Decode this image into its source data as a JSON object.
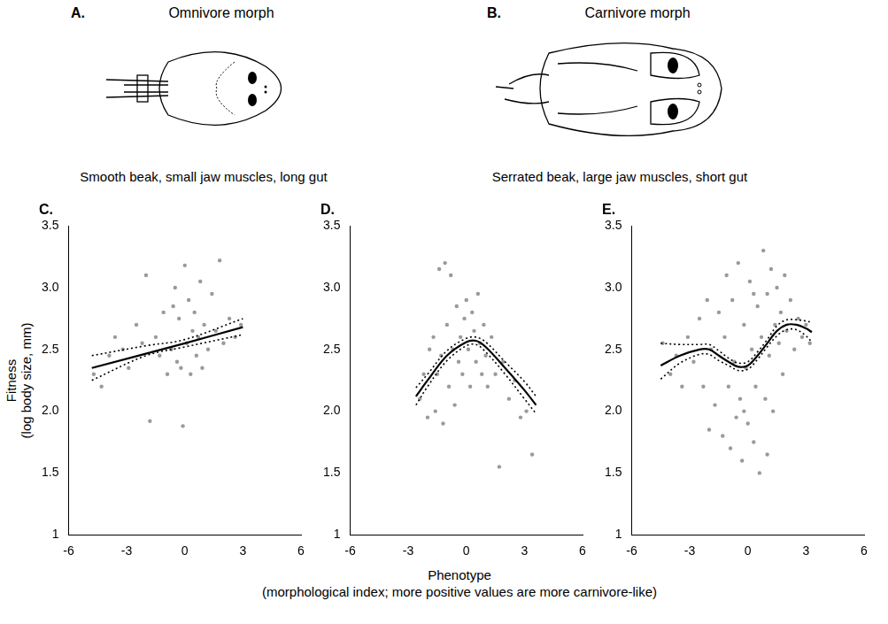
{
  "drawings": [
    {
      "letter": "A.",
      "title": "Omnivore morph",
      "caption": "Smooth beak, small jaw muscles, long gut"
    },
    {
      "letter": "B.",
      "title": "Carnivore morph",
      "caption": "Serrated beak, large jaw muscles, short gut"
    }
  ],
  "y_label": [
    "Fitness",
    "(log body size, mm)"
  ],
  "x_label": [
    "Phenotype",
    "(morphological index; more positive values are more carnivore-like)"
  ],
  "chart_data": [
    {
      "type": "scatter",
      "title": "C.",
      "grid": false,
      "xlim": [
        -6,
        6
      ],
      "xticks": [
        -6,
        -3,
        0,
        3,
        6
      ],
      "ylim": [
        1,
        3.5
      ],
      "yticks": [
        1,
        1.5,
        {
          "value": 2,
          "label": "2.0"
        },
        2.5,
        {
          "value": 3,
          "label": "3.0"
        },
        3.5
      ],
      "series": [
        {
          "type": "scatter",
          "marker": "circle",
          "color": "#9a9a9a",
          "x": [
            -4.7,
            -4.3,
            -3.9,
            -3.6,
            -3.2,
            -2.9,
            -2.5,
            -2.2,
            -2.0,
            -1.8,
            -1.5,
            -1.3,
            -1.1,
            -0.9,
            -0.7,
            -0.6,
            -0.5,
            -0.4,
            -0.3,
            -0.2,
            -0.1,
            0,
            0.1,
            0.2,
            0.3,
            0.4,
            0.5,
            0.6,
            0.7,
            0.8,
            0.9,
            1.0,
            1.2,
            1.4,
            1.6,
            1.8,
            2.0,
            2.3,
            2.6,
            2.9
          ],
          "values": [
            2.3,
            2.2,
            2.45,
            2.6,
            2.5,
            2.35,
            2.7,
            2.55,
            3.1,
            1.92,
            2.6,
            2.45,
            2.8,
            2.3,
            2.5,
            2.85,
            3.0,
            2.4,
            2.75,
            2.35,
            1.88,
            3.18,
            2.55,
            2.9,
            2.3,
            2.65,
            2.8,
            2.45,
            2.6,
            3.05,
            2.35,
            2.7,
            2.5,
            2.95,
            2.65,
            3.22,
            2.55,
            2.75,
            2.6,
            2.7
          ]
        },
        {
          "type": "line",
          "line_style": "solid",
          "color": "#000000",
          "x": [
            -4.8,
            0,
            3
          ],
          "values": [
            2.35,
            2.55,
            2.68
          ]
        },
        {
          "type": "line",
          "line_style": "dotted",
          "color": "#000000",
          "x": [
            -4.8,
            -2,
            0,
            3
          ],
          "values": [
            2.25,
            2.45,
            2.52,
            2.62
          ]
        },
        {
          "type": "line",
          "line_style": "dotted",
          "color": "#000000",
          "x": [
            -4.8,
            -2,
            0,
            3
          ],
          "values": [
            2.45,
            2.53,
            2.58,
            2.75
          ]
        }
      ]
    },
    {
      "type": "scatter",
      "title": "D.",
      "grid": false,
      "xlim": [
        -6,
        6
      ],
      "xticks": [
        -6,
        -3,
        0,
        3,
        6
      ],
      "ylim": [
        1,
        3.5
      ],
      "yticks": [
        1,
        1.5,
        {
          "value": 2,
          "label": "2.0"
        },
        2.5,
        {
          "value": 3,
          "label": "3.0"
        },
        3.5
      ],
      "series": [
        {
          "type": "scatter",
          "marker": "circle",
          "color": "#9a9a9a",
          "x": [
            -2.4,
            -2.2,
            -2.0,
            -1.9,
            -1.7,
            -1.6,
            -1.5,
            -1.4,
            -1.3,
            -1.2,
            -1.1,
            -1.0,
            -0.9,
            -0.8,
            -0.7,
            -0.6,
            -0.5,
            -0.4,
            -0.3,
            -0.2,
            -0.1,
            0,
            0.1,
            0.2,
            0.3,
            0.4,
            0.5,
            0.6,
            0.7,
            0.8,
            0.9,
            1.0,
            1.1,
            1.3,
            1.5,
            1.7,
            1.9,
            2.2,
            2.5,
            2.8,
            3.1,
            3.4
          ],
          "values": [
            2.1,
            2.3,
            1.95,
            2.5,
            2.6,
            2.0,
            2.3,
            3.15,
            2.45,
            1.9,
            3.2,
            2.7,
            2.2,
            3.1,
            2.5,
            2.05,
            2.85,
            2.4,
            2.6,
            2.3,
            2.75,
            2.9,
            2.5,
            2.2,
            2.8,
            2.65,
            2.4,
            2.95,
            2.55,
            2.3,
            2.7,
            2.45,
            2.2,
            2.6,
            2.3,
            1.55,
            2.4,
            2.1,
            2.25,
            1.95,
            2.0,
            1.65
          ]
        },
        {
          "type": "line",
          "line_style": "solid",
          "color": "#000000",
          "x": [
            -2.6,
            -2,
            -1,
            0,
            0.5,
            1,
            2,
            3,
            3.6
          ],
          "values": [
            2.12,
            2.25,
            2.45,
            2.56,
            2.57,
            2.52,
            2.35,
            2.17,
            2.05
          ]
        },
        {
          "type": "line",
          "line_style": "dotted",
          "color": "#000000",
          "x": [
            -2.6,
            -2,
            -1,
            0,
            0.5,
            1,
            2,
            3,
            3.6
          ],
          "values": [
            2.05,
            2.2,
            2.41,
            2.53,
            2.54,
            2.48,
            2.3,
            2.1,
            1.98
          ]
        },
        {
          "type": "line",
          "line_style": "dotted",
          "color": "#000000",
          "x": [
            -2.6,
            -2,
            -1,
            0,
            0.5,
            1,
            2,
            3,
            3.6
          ],
          "values": [
            2.19,
            2.3,
            2.49,
            2.59,
            2.6,
            2.56,
            2.4,
            2.24,
            2.12
          ]
        }
      ]
    },
    {
      "type": "scatter",
      "title": "E.",
      "grid": false,
      "xlim": [
        -6,
        6
      ],
      "xticks": [
        -6,
        -3,
        0,
        3,
        6
      ],
      "ylim": [
        1,
        3.5
      ],
      "yticks": [
        1,
        1.5,
        {
          "value": 2,
          "label": "2.0"
        },
        2.5,
        {
          "value": 3,
          "label": "3.0"
        },
        3.5
      ],
      "series": [
        {
          "type": "scatter",
          "marker": "circle",
          "color": "#9a9a9a",
          "x": [
            -4.4,
            -4.0,
            -3.7,
            -3.4,
            -3.1,
            -2.8,
            -2.5,
            -2.3,
            -2.1,
            -1.9,
            -1.7,
            -1.5,
            -1.3,
            -1.2,
            -1.1,
            -1.0,
            -0.9,
            -0.8,
            -0.7,
            -0.6,
            -0.5,
            -0.4,
            -0.3,
            -0.2,
            -0.1,
            0,
            0.1,
            0.2,
            0.3,
            0.4,
            0.5,
            0.6,
            0.7,
            0.8,
            0.9,
            1.0,
            1.1,
            1.2,
            1.3,
            1.4,
            1.5,
            1.6,
            1.7,
            1.8,
            1.9,
            2.0,
            2.2,
            2.4,
            2.6,
            2.8,
            3.0,
            3.2,
            -2.0,
            -0.2,
            0.3,
            1.0
          ],
          "values": [
            2.55,
            2.3,
            2.45,
            2.2,
            2.6,
            2.4,
            2.75,
            2.2,
            2.9,
            2.5,
            2.05,
            2.8,
            1.8,
            2.6,
            3.1,
            2.2,
            1.7,
            2.9,
            2.4,
            1.95,
            3.2,
            2.1,
            1.6,
            2.7,
            2.35,
            1.9,
            3.05,
            2.5,
            1.75,
            2.2,
            2.85,
            1.5,
            2.6,
            3.3,
            2.1,
            2.95,
            2.45,
            3.15,
            2.0,
            2.7,
            3.0,
            2.55,
            2.8,
            2.3,
            3.1,
            2.65,
            2.9,
            2.5,
            2.75,
            2.6,
            2.7,
            2.55,
            1.85,
            2.0,
            2.95,
            1.65
          ]
        },
        {
          "type": "line",
          "line_style": "solid",
          "color": "#000000",
          "x": [
            -4.5,
            -3.5,
            -2.5,
            -2,
            -1.5,
            -1,
            -0.5,
            0,
            0.5,
            1,
            1.5,
            2,
            2.5,
            3,
            3.3
          ],
          "values": [
            2.37,
            2.45,
            2.5,
            2.5,
            2.45,
            2.4,
            2.36,
            2.37,
            2.45,
            2.55,
            2.65,
            2.7,
            2.7,
            2.67,
            2.64
          ]
        },
        {
          "type": "line",
          "line_style": "dotted",
          "color": "#000000",
          "x": [
            -4.5,
            -3.5,
            -2.5,
            -2,
            -1.5,
            -1,
            -0.5,
            0,
            0.5,
            1,
            1.5,
            2,
            2.5,
            3,
            3.3
          ],
          "values": [
            2.26,
            2.39,
            2.46,
            2.46,
            2.41,
            2.37,
            2.33,
            2.34,
            2.42,
            2.52,
            2.61,
            2.66,
            2.66,
            2.61,
            2.56
          ]
        },
        {
          "type": "line",
          "line_style": "dotted",
          "color": "#000000",
          "x": [
            -4.5,
            -3.5,
            -2.5,
            -2,
            -1.5,
            -1,
            -0.5,
            0,
            0.5,
            1,
            1.5,
            2,
            2.5,
            3,
            3.3
          ],
          "values": [
            2.55,
            2.54,
            2.54,
            2.54,
            2.49,
            2.43,
            2.39,
            2.4,
            2.48,
            2.58,
            2.69,
            2.74,
            2.74,
            2.73,
            2.72
          ]
        }
      ]
    }
  ]
}
